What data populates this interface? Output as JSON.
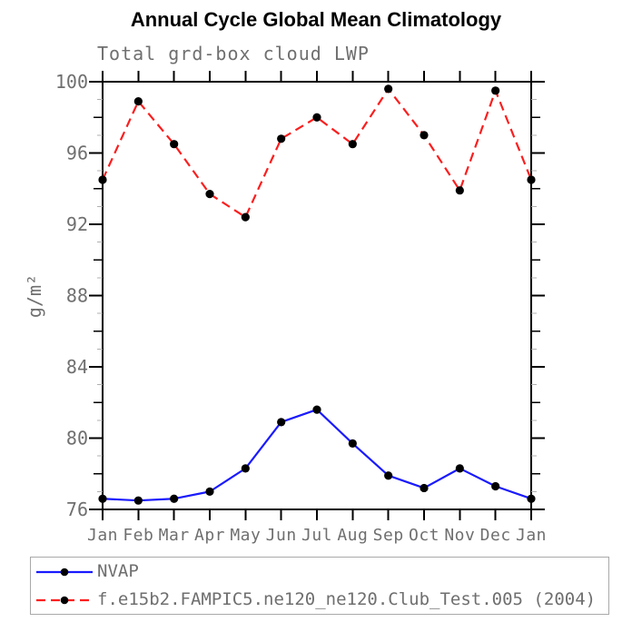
{
  "header": {
    "title": "Annual Cycle Global Mean Climatology",
    "subtitle": "Total grd-box cloud LWP"
  },
  "chart_data": {
    "type": "line",
    "title": "Annual Cycle Global Mean Climatology",
    "subtitle": "Total grd-box cloud LWP",
    "xlabel": "",
    "ylabel": "g/m²",
    "x_tick_labels": [
      "Jan",
      "Feb",
      "Mar",
      "Apr",
      "May",
      "Jun",
      "Jul",
      "Aug",
      "Sep",
      "Oct",
      "Nov",
      "Dec",
      "Jan"
    ],
    "ylim": [
      76,
      100
    ],
    "ytick_labels": [
      76,
      80,
      84,
      88,
      92,
      96,
      100
    ],
    "ytick_major_interval": 4,
    "ytick_medium_interval": 2,
    "ytick_minor_interval": 1,
    "grid": false,
    "legend_position": "bottom-left",
    "series": [
      {
        "name": "NVAP",
        "color": "#1a1aff",
        "style": "solid",
        "marker": "circle",
        "marker_color": "#000000",
        "values": [
          76.6,
          76.5,
          76.6,
          77.0,
          78.3,
          80.9,
          81.6,
          79.7,
          77.9,
          77.2,
          78.3,
          77.3,
          76.6
        ]
      },
      {
        "name": "f.e15b2.FAMPIC5.ne120_ne120.Club_Test.005 (2004)",
        "color": "#fb1e1e",
        "style": "dashed",
        "marker": "circle",
        "marker_color": "#000000",
        "values": [
          94.5,
          98.9,
          96.5,
          93.7,
          92.4,
          96.8,
          98.0,
          96.5,
          99.6,
          97.0,
          93.9,
          99.5,
          94.5
        ]
      }
    ],
    "colors": {
      "axis": "#000000",
      "minor_tick": "#b0b0b0",
      "text_gray": "#6f6f6f",
      "legend_border": "#a9a9a9"
    }
  }
}
